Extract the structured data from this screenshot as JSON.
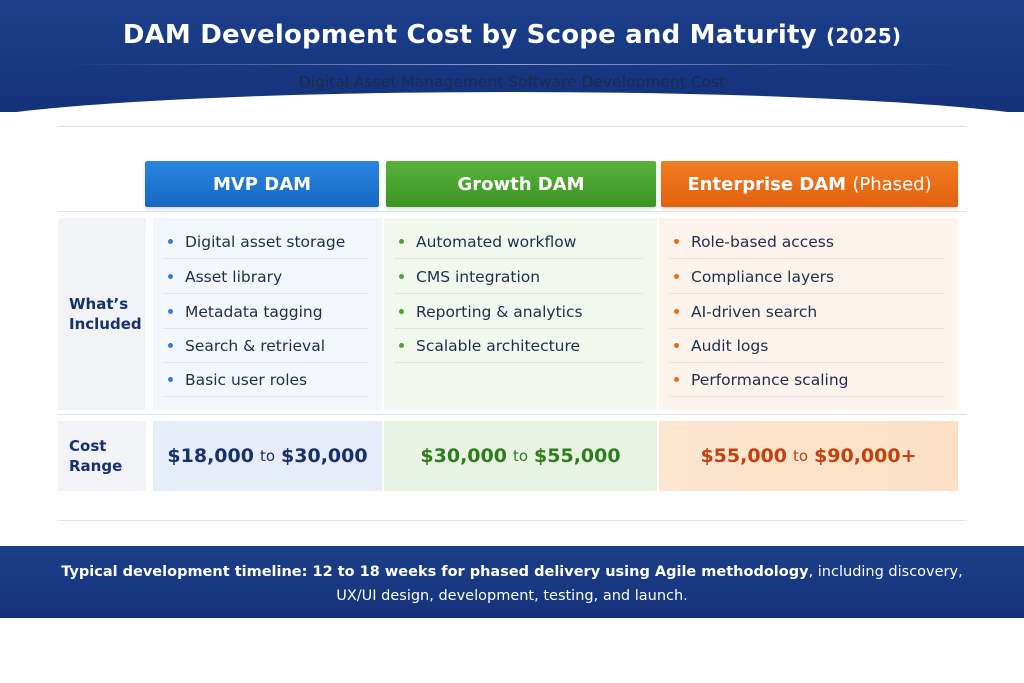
{
  "header": {
    "title": "DAM Development Cost by Scope and Maturity",
    "title_year": "(2025)",
    "subtitle": "Digital Asset Management Software Development Cost"
  },
  "columns": [
    {
      "title": "MVP DAM",
      "title_suffix": "",
      "features": [
        "Digital asset storage",
        "Asset library",
        "Metadata tagging",
        "Search & retrieval",
        "Basic user roles"
      ],
      "cost_low": "$18,000",
      "cost_high": "$30,000",
      "cost_suffix": ""
    },
    {
      "title": "Growth DAM",
      "title_suffix": "",
      "features": [
        "Automated workflow",
        "CMS integration",
        "Reporting & analytics",
        "Scalable architecture"
      ],
      "cost_low": "$30,000",
      "cost_high": "$55,000",
      "cost_suffix": ""
    },
    {
      "title": "Enterprise DAM",
      "title_suffix": "(Phased)",
      "features": [
        "Role-based access",
        "Compliance layers",
        "AI-driven search",
        "Audit logs",
        "Performance scaling"
      ],
      "cost_low": "$55,000",
      "cost_high": "$90,000+",
      "cost_suffix": ""
    }
  ],
  "rows": {
    "included_line1": "What’s",
    "included_line2": "Included",
    "cost_line1": "Cost",
    "cost_line2": "Range",
    "cost_connector": "to"
  },
  "footer": {
    "bold_part1": "Typical development timeline: 12 to 18 weeks for phased delivery using Agile methodology",
    "normal_part1": ", including discovery,",
    "line2": "UX/UI design, development, testing, and launch."
  },
  "colors": {
    "header_bg": "#1c3f8a",
    "mvp": "#1667c4",
    "growth": "#3c9424",
    "enterprise": "#e3600e"
  }
}
